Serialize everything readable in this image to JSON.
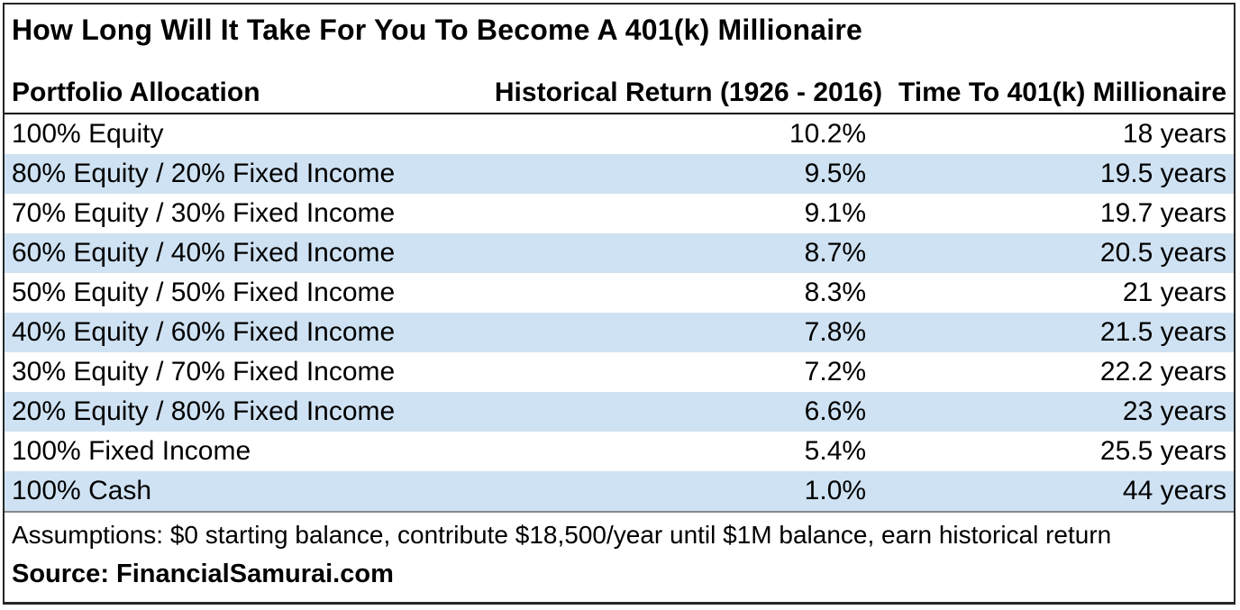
{
  "chart_data": {
    "type": "table",
    "title": "How Long Will It Take For You To Become A 401(k) Millionaire",
    "columns": [
      "Portfolio Allocation",
      "Historical Return (1926 - 2016)",
      "Time To 401(k) Millionaire"
    ],
    "rows": [
      [
        "100% Equity",
        "10.2%",
        "18 years"
      ],
      [
        "80% Equity / 20% Fixed Income",
        "9.5%",
        "19.5 years"
      ],
      [
        "70% Equity / 30% Fixed Income",
        "9.1%",
        "19.7 years"
      ],
      [
        "60% Equity / 40% Fixed Income",
        "8.7%",
        "20.5 years"
      ],
      [
        "50% Equity / 50% Fixed Income",
        "8.3%",
        "21 years"
      ],
      [
        "40% Equity / 60% Fixed Income",
        "7.8%",
        "21.5 years"
      ],
      [
        "30% Equity / 70% Fixed Income",
        "7.2%",
        "22.2 years"
      ],
      [
        "20% Equity / 80% Fixed Income",
        "6.6%",
        "23 years"
      ],
      [
        "100% Fixed Income",
        "5.4%",
        "25.5 years"
      ],
      [
        "100% Cash",
        "1.0%",
        "44 years"
      ]
    ],
    "historical_returns_pct": [
      10.2,
      9.5,
      9.1,
      8.7,
      8.3,
      7.8,
      7.2,
      6.6,
      5.4,
      1.0
    ],
    "years_to_millionaire": [
      18,
      19.5,
      19.7,
      20.5,
      21,
      21.5,
      22.2,
      23,
      25.5,
      44
    ],
    "assumptions": "Assumptions: $0 starting balance, contribute $18,500/year until $1M balance, earn historical return",
    "source": "Source: FinancialSamurai.com",
    "layout": {
      "legend_position": "none",
      "grid": "alternating-row-shading"
    },
    "colors": {
      "row_alt": "#cfe2f3",
      "border": "#262626",
      "header_rule": "#000000",
      "footer_rule": "#888888",
      "text": "#000000",
      "background": "#ffffff"
    }
  }
}
